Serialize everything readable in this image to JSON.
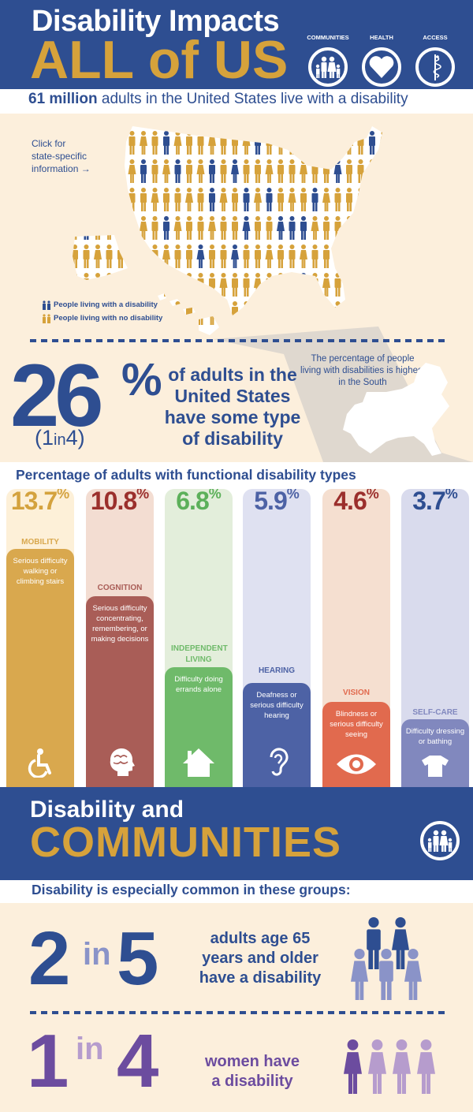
{
  "header": {
    "title_line1": "Disability Impacts",
    "title_line2": "ALL of US",
    "pillars": [
      {
        "label": "COMMUNITIES",
        "icon": "family-icon"
      },
      {
        "label": "HEALTH",
        "icon": "heart-icon"
      },
      {
        "label": "ACCESS",
        "icon": "caduceus-icon"
      }
    ]
  },
  "subheadline": {
    "bold": "61 million",
    "rest": " adults in the United States live with a disability"
  },
  "map": {
    "click_text": "Click for state-specific information →",
    "click_line1": "Click for",
    "click_line2": "state-specific",
    "click_line3": "information →",
    "legend": [
      {
        "label": "People living with a disability",
        "color": "#2e4e91"
      },
      {
        "label": "People living with no disability",
        "color": "#d6a23b"
      }
    ],
    "south_note": "The percentage of people living with disabilities is highest in the South"
  },
  "headline_stat": {
    "value": "26",
    "unit": "%",
    "ratio_num": "1",
    "ratio_in": "in",
    "ratio_den": "4",
    "description": "of adults in the United States have some type of disability"
  },
  "functional_types": {
    "title": "Percentage of adults with functional disability types",
    "items": [
      {
        "value": "13.7",
        "unit": "%",
        "label": "MOBILITY",
        "description": "Serious difficulty walking or climbing stairs",
        "icon": "wheelchair-icon",
        "color": "#d9a84e",
        "light": "#fdf0d8",
        "text_color": "#d4a23e"
      },
      {
        "value": "10.8",
        "unit": "%",
        "label": "COGNITION",
        "description": "Serious difficulty concentrating, remembering, or making decisions",
        "icon": "brain-icon",
        "color": "#a95d57",
        "light": "#f3ddd2",
        "text_color": "#9b2f2c"
      },
      {
        "value": "6.8",
        "unit": "%",
        "label": "INDEPENDENT LIVING",
        "description": "Difficulty doing errands alone",
        "icon": "house-icon",
        "color": "#6fba6a",
        "light": "#e3eedb",
        "text_color": "#5cb05a"
      },
      {
        "value": "5.9",
        "unit": "%",
        "label": "HEARING",
        "description": "Deafness or serious difficulty hearing",
        "icon": "ear-icon",
        "color": "#4d62a5",
        "light": "#dfe1f1",
        "text_color": "#4d62a5"
      },
      {
        "value": "4.6",
        "unit": "%",
        "label": "VISION",
        "description": "Blindness or serious difficulty seeing",
        "icon": "eye-icon",
        "color": "#e16a4e",
        "light": "#f5dfd0",
        "text_color": "#9b2f2c"
      },
      {
        "value": "3.7",
        "unit": "%",
        "label": "SELF-CARE",
        "description": "Difficulty dressing or bathing",
        "icon": "shirt-icon",
        "color": "#8188be",
        "light": "#d9dbed",
        "text_color": "#2e4e91"
      }
    ]
  },
  "communities": {
    "title_line1": "Disability and",
    "title_line2": "COMMUNITIES",
    "subtitle": "Disability is especially common in these groups:",
    "groups": [
      {
        "num": "2",
        "in": "in",
        "den": "5",
        "text_lines": [
          "adults age 65",
          "years and older",
          "have a disability"
        ],
        "color": "#2e4e91",
        "light": "#8a93c8",
        "highlighted": 2,
        "total": 5
      },
      {
        "num": "1",
        "in": "in",
        "den": "4",
        "text_lines": [
          "women have",
          "a disability"
        ],
        "color": "#6c4c9f",
        "light": "#b69ccd",
        "highlighted": 1,
        "total": 4
      }
    ]
  },
  "colors": {
    "navy": "#2e4e91",
    "gold": "#d6a23b",
    "cream": "#fcefdc"
  }
}
